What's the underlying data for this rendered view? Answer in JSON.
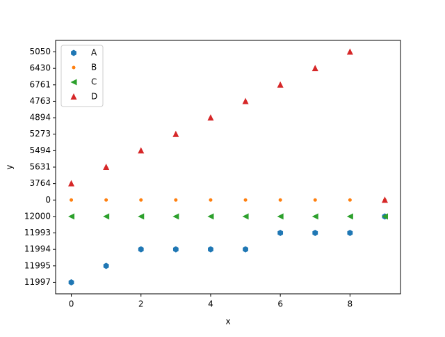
{
  "chart_data": {
    "type": "scatter",
    "xlabel": "x",
    "ylabel": "y",
    "x": [
      0,
      1,
      2,
      3,
      4,
      5,
      6,
      7,
      8,
      9
    ],
    "xlim": [
      -0.45,
      9.45
    ],
    "xticks": [
      0,
      2,
      4,
      6,
      8
    ],
    "ycategories": [
      "11997",
      "11995",
      "11994",
      "11993",
      "12000",
      "0",
      "3764",
      "5631",
      "5494",
      "5273",
      "4894",
      "4763",
      "6761",
      "6430",
      "5050"
    ],
    "ylim": [
      -0.7,
      14.7
    ],
    "legend": "upper left",
    "series": [
      {
        "name": "A",
        "color": "#1f77b4",
        "marker": "hexagon",
        "values": [
          "11997",
          "11995",
          "11994",
          "11994",
          "11994",
          "11994",
          "11993",
          "11993",
          "11993",
          "12000"
        ]
      },
      {
        "name": "B",
        "color": "#ff7f0e",
        "marker": "point",
        "values": [
          "0",
          "0",
          "0",
          "0",
          "0",
          "0",
          "0",
          "0",
          "0",
          "0"
        ]
      },
      {
        "name": "C",
        "color": "#2ca02c",
        "marker": "triangle-left",
        "values": [
          "12000",
          "12000",
          "12000",
          "12000",
          "12000",
          "12000",
          "12000",
          "12000",
          "12000",
          "12000"
        ]
      },
      {
        "name": "D",
        "color": "#d62728",
        "marker": "triangle-up",
        "values": [
          "3764",
          "5631",
          "5494",
          "5273",
          "4894",
          "4763",
          "6761",
          "6430",
          "5050",
          "0"
        ]
      }
    ]
  }
}
